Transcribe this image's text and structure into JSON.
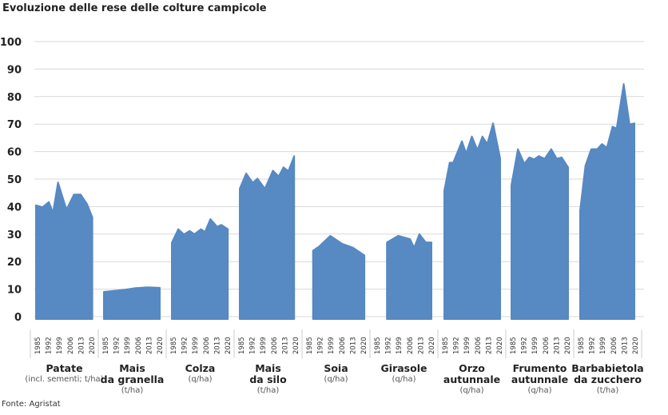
{
  "chart_data": {
    "type": "area",
    "title": "Evoluzione delle rese delle colture campicole",
    "source": "Fonte: Agristat",
    "ylim": [
      0,
      100
    ],
    "yticks": [
      0,
      10,
      20,
      30,
      40,
      50,
      60,
      70,
      80,
      90,
      100
    ],
    "xticks": [
      "1985",
      "1992",
      "1999",
      "2006",
      "2013",
      "2020"
    ],
    "grid": true,
    "color": "#5789c2",
    "panels": [
      {
        "name": [
          "Patate"
        ],
        "unit": "(incl. sementi; t/ha)",
        "points": [
          [
            1985,
            40.5
          ],
          [
            1989,
            39.8
          ],
          [
            1993,
            41.7
          ],
          [
            1995.5,
            37.8
          ],
          [
            1998.6,
            48.8
          ],
          [
            2003.5,
            39.5
          ],
          [
            2004.3,
            39.5
          ],
          [
            2008.4,
            44.4
          ],
          [
            2012.6,
            44.4
          ],
          [
            2016.5,
            41
          ],
          [
            2019.8,
            36.1
          ]
        ]
      },
      {
        "name": [
          "Mais",
          "da granella"
        ],
        "unit": "(t/ha)",
        "points": [
          [
            1985,
            9.0
          ],
          [
            1998,
            9.8
          ],
          [
            2004.5,
            10.4
          ],
          [
            2012,
            10.7
          ],
          [
            2019.5,
            10.5
          ]
        ]
      },
      {
        "name": [
          "Colza"
        ],
        "unit": "(q/ha)",
        "points": [
          [
            1985,
            26.9
          ],
          [
            1989,
            31.8
          ],
          [
            1992.5,
            29.9
          ],
          [
            1996,
            31.2
          ],
          [
            1999,
            30
          ],
          [
            2003,
            31.8
          ],
          [
            2005.5,
            30.8
          ],
          [
            2008.8,
            35.5
          ],
          [
            2013,
            32.7
          ],
          [
            2015.5,
            33.4
          ],
          [
            2019.6,
            31.8
          ]
        ]
      },
      {
        "name": [
          "Mais",
          "da silo"
        ],
        "unit": "(t/ha)",
        "points": [
          [
            1985,
            46.5
          ],
          [
            1989,
            52.1
          ],
          [
            1993,
            48.7
          ],
          [
            1996,
            50.2
          ],
          [
            2000.5,
            46.5
          ],
          [
            2005.5,
            53.1
          ],
          [
            2009,
            51
          ],
          [
            2012,
            54.3
          ],
          [
            2015,
            52.9
          ],
          [
            2018.6,
            58.4
          ]
        ]
      },
      {
        "name": [
          "Soia"
        ],
        "unit": "(q/ha)",
        "points": [
          [
            1988.3,
            24
          ],
          [
            1992,
            25.5
          ],
          [
            1999,
            29.4
          ],
          [
            2006.3,
            26.5
          ],
          [
            2013,
            25.1
          ],
          [
            2020,
            22.3
          ]
        ]
      },
      {
        "name": [
          "Girasole"
        ],
        "unit": "(q/ha)",
        "points": [
          [
            1992,
            27
          ],
          [
            1999,
            29.4
          ],
          [
            2006.3,
            28.2
          ],
          [
            2008.8,
            25.1
          ],
          [
            2012,
            30
          ],
          [
            2016,
            27
          ],
          [
            2019.5,
            27
          ]
        ]
      },
      {
        "name": [
          "Orzo",
          "autunnale"
        ],
        "unit": "(q/ha)",
        "points": [
          [
            1985.5,
            45.8
          ],
          [
            1988.8,
            56
          ],
          [
            1991,
            56
          ],
          [
            1996.4,
            63.8
          ],
          [
            1999,
            59.4
          ],
          [
            2002.5,
            65.5
          ],
          [
            2006,
            60.6
          ],
          [
            2009,
            65.5
          ],
          [
            2012,
            62.8
          ],
          [
            2015.6,
            70.3
          ],
          [
            2020,
            57.5
          ]
        ]
      },
      {
        "name": [
          "Frumento",
          "autunnale"
        ],
        "unit": "(q/ha)",
        "points": [
          [
            1985,
            47.8
          ],
          [
            1989,
            60.9
          ],
          [
            1993,
            55.6
          ],
          [
            1996,
            57.9
          ],
          [
            1999,
            57.2
          ],
          [
            2002,
            58.4
          ],
          [
            2005.5,
            57.4
          ],
          [
            2009.6,
            60.9
          ],
          [
            2013,
            57.4
          ],
          [
            2016,
            57.9
          ],
          [
            2020,
            54.3
          ]
        ]
      },
      {
        "name": [
          "Barbabietola",
          "da zucchero"
        ],
        "unit": "(t/ha)",
        "points": [
          [
            1985.5,
            38.6
          ],
          [
            1988.8,
            55
          ],
          [
            1992.4,
            60.9
          ],
          [
            1996,
            60.9
          ],
          [
            1999,
            62.8
          ],
          [
            2002,
            61.4
          ],
          [
            2005.5,
            69.1
          ],
          [
            2008,
            68.4
          ],
          [
            2012.4,
            84.6
          ],
          [
            2016,
            69.9
          ],
          [
            2019,
            70.3
          ]
        ]
      }
    ]
  }
}
